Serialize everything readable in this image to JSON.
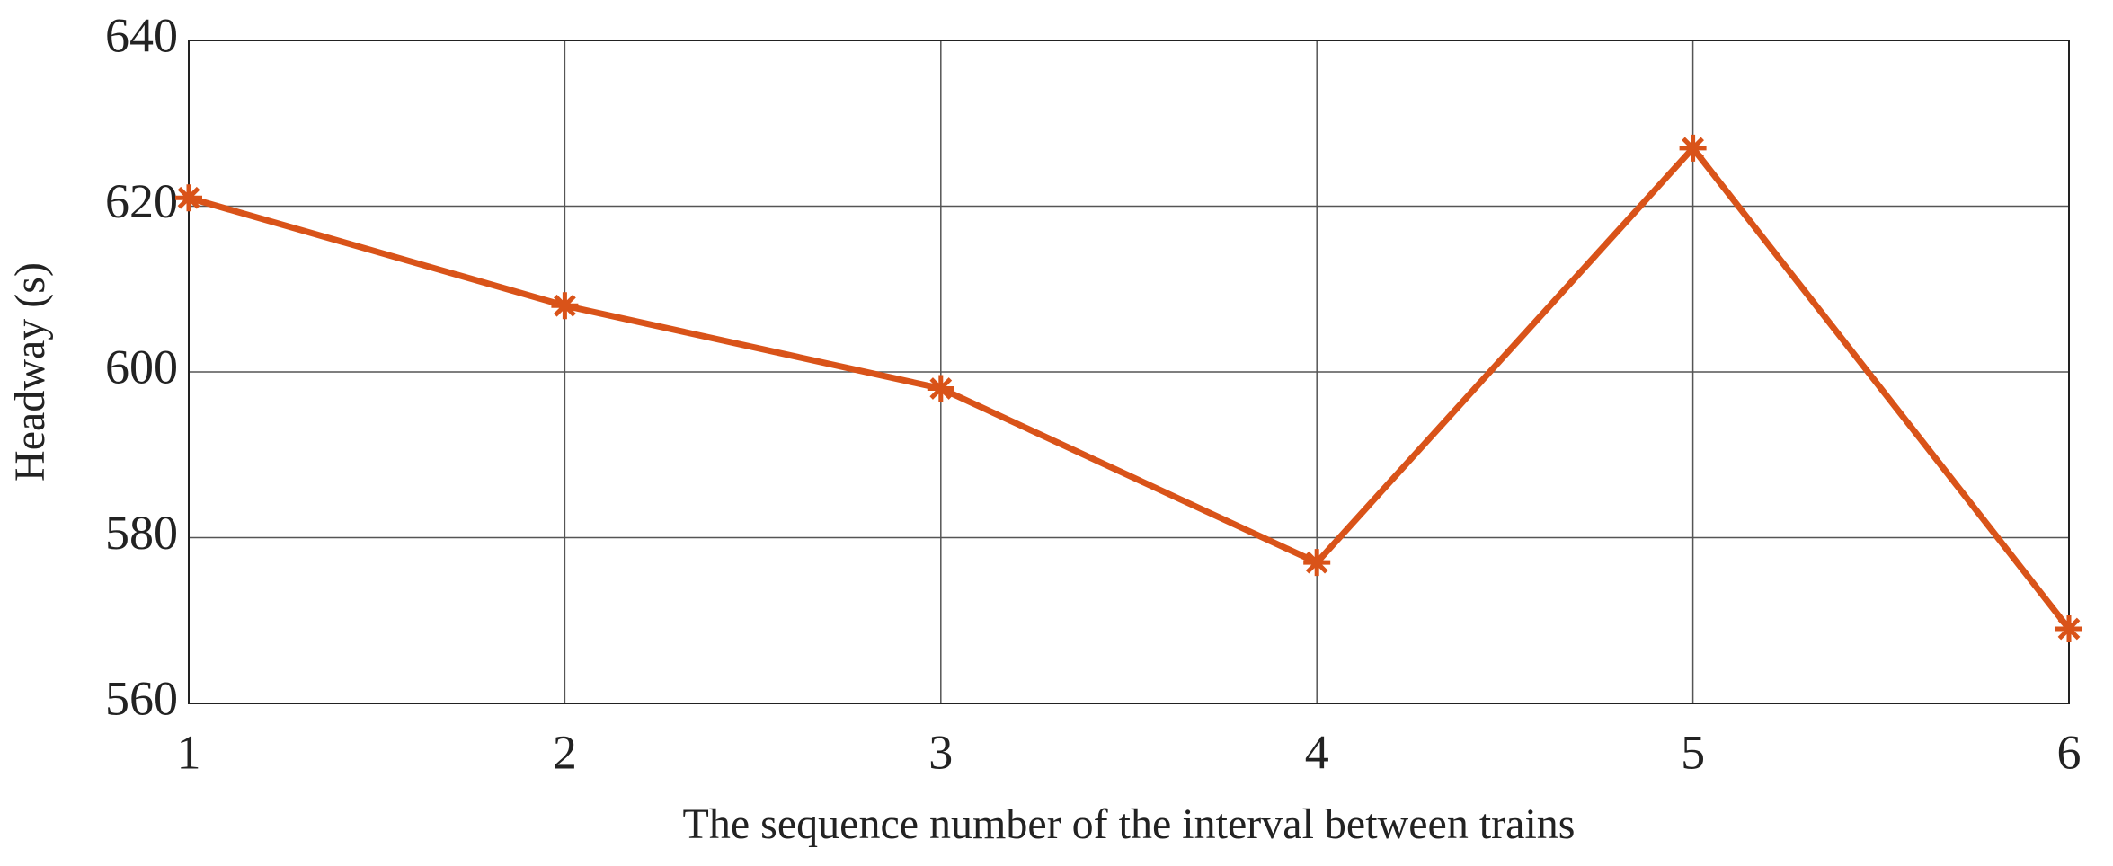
{
  "chart_data": {
    "type": "line",
    "x_label": "The sequence number of the interval between trains",
    "y_label": "Headway (s)",
    "x": [
      1,
      2,
      3,
      4,
      5,
      6
    ],
    "series": [
      {
        "color": "#d95319",
        "values": [
          621,
          608,
          598,
          577,
          627,
          569
        ]
      }
    ],
    "xlim": [
      1,
      6
    ],
    "xticks": [
      1,
      2,
      3,
      4,
      5,
      6
    ],
    "ylim": [
      560,
      640
    ],
    "yticks": [
      560,
      580,
      600,
      620,
      640
    ],
    "grid": true,
    "marker": "asterisk"
  }
}
